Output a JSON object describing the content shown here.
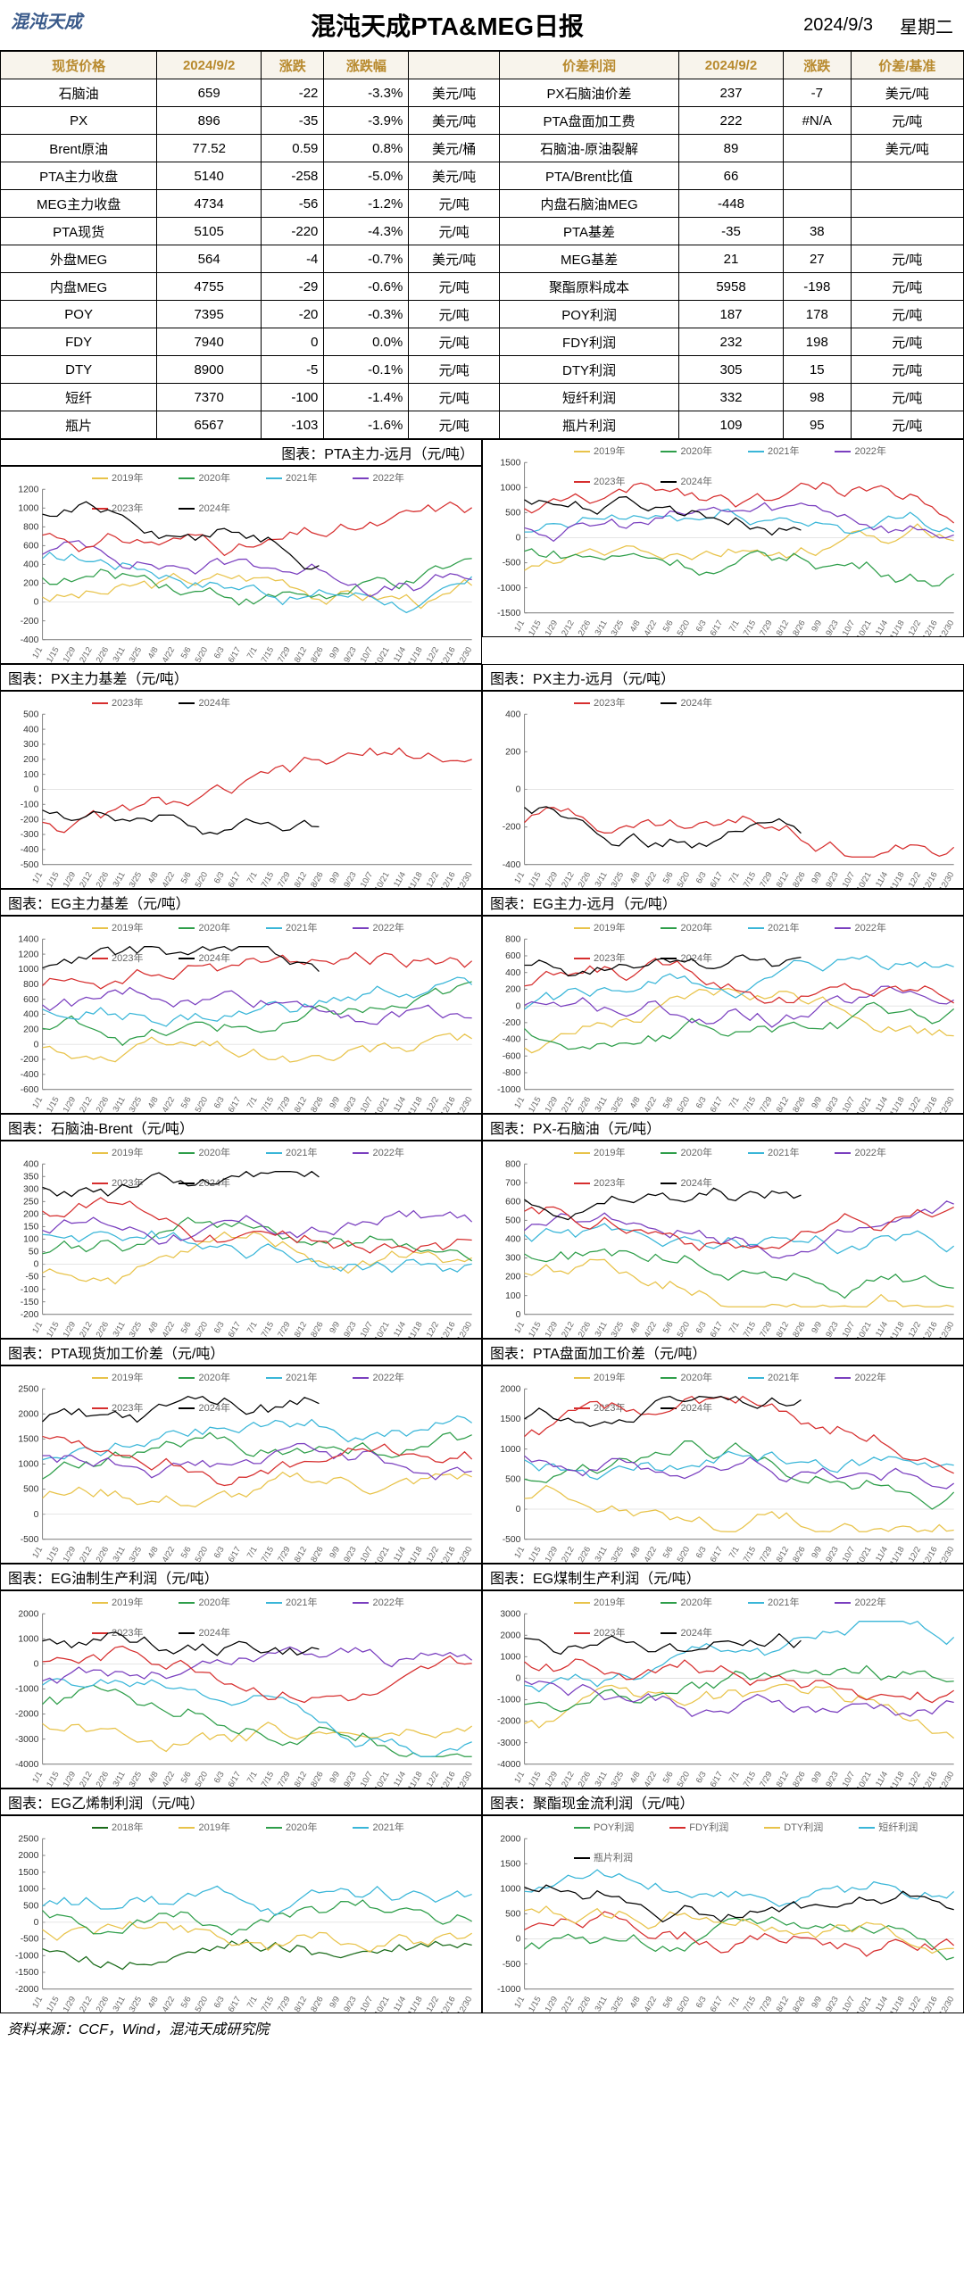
{
  "header": {
    "logo": "混沌天成",
    "title": "混沌天成PTA&MEG日报",
    "date": "2024/9/3",
    "dow": "星期二"
  },
  "table": {
    "headers_left": [
      "现货价格",
      "2024/9/2",
      "涨跌",
      "涨跌幅",
      ""
    ],
    "headers_right": [
      "价差利润",
      "2024/9/2",
      "涨跌",
      "价差/基准"
    ],
    "rows": [
      [
        "石脑油",
        "659",
        "-22",
        "-3.3%",
        "美元/吨",
        "PX石脑油价差",
        "237",
        "-7",
        "美元/吨"
      ],
      [
        "PX",
        "896",
        "-35",
        "-3.9%",
        "美元/吨",
        "PTA盘面加工费",
        "222",
        "#N/A",
        "元/吨"
      ],
      [
        "Brent原油",
        "77.52",
        "0.59",
        "0.8%",
        "美元/桶",
        "石脑油-原油裂解",
        "89",
        "",
        "美元/吨"
      ],
      [
        "PTA主力收盘",
        "5140",
        "-258",
        "-5.0%",
        "美元/吨",
        "PTA/Brent比值",
        "66",
        "",
        ""
      ],
      [
        "MEG主力收盘",
        "4734",
        "-56",
        "-1.2%",
        "元/吨",
        "内盘石脑油MEG",
        "-448",
        "",
        ""
      ],
      [
        "PTA现货",
        "5105",
        "-220",
        "-4.3%",
        "元/吨",
        "PTA基差",
        "-35",
        "38",
        ""
      ],
      [
        "外盘MEG",
        "564",
        "-4",
        "-0.7%",
        "美元/吨",
        "MEG基差",
        "21",
        "27",
        "元/吨"
      ],
      [
        "内盘MEG",
        "4755",
        "-29",
        "-0.6%",
        "元/吨",
        "聚酯原料成本",
        "5958",
        "-198",
        "元/吨"
      ],
      [
        "POY",
        "7395",
        "-20",
        "-0.3%",
        "元/吨",
        "POY利润",
        "187",
        "178",
        "元/吨"
      ],
      [
        "FDY",
        "7940",
        "0",
        "0.0%",
        "元/吨",
        "FDY利润",
        "232",
        "198",
        "元/吨"
      ],
      [
        "DTY",
        "8900",
        "-5",
        "-0.1%",
        "元/吨",
        "DTY利润",
        "305",
        "15",
        "元/吨"
      ],
      [
        "短纤",
        "7370",
        "-100",
        "-1.4%",
        "元/吨",
        "短纤利润",
        "332",
        "98",
        "元/吨"
      ],
      [
        "瓶片",
        "6567",
        "-103",
        "-1.6%",
        "元/吨",
        "瓶片利润",
        "109",
        "95",
        "元/吨"
      ]
    ]
  },
  "legend_years": [
    "2019年",
    "2020年",
    "2021年",
    "2022年",
    "2023年",
    "2024年"
  ],
  "legend_colors": {
    "2019年": "#e8c34a",
    "2020年": "#2e9e4a",
    "2021年": "#3ab6d8",
    "2022年": "#7a3fbf",
    "2023年": "#d62e2e",
    "2024年": "#000000",
    "2018年": "#1a6b1a",
    "POY利润": "#2e9e4a",
    "FDY利润": "#d62e2e",
    "DTY利润": "#e8c34a",
    "短纤利润": "#3ab6d8",
    "瓶片利润": "#000000"
  },
  "charts": [
    {
      "title": "图表：PTA主力-远月（元/吨）",
      "ymin": -400,
      "ymax": 1200,
      "ystep": 200,
      "legend": [
        "2019年",
        "2020年",
        "2021年",
        "2022年",
        "2023年",
        "2024年"
      ],
      "span": "right",
      "top_label": true
    },
    {
      "title": "",
      "ymin": -1500,
      "ymax": 1500,
      "ystep": 500,
      "legend": [
        "2019年",
        "2020年",
        "2021年",
        "2022年",
        "2023年",
        "2024年"
      ]
    },
    {
      "title": "图表：PX主力基差（元/吨）",
      "ymin": -500,
      "ymax": 500,
      "ystep": 100,
      "legend": [
        "2023年",
        "2024年"
      ]
    },
    {
      "title": "图表：PX主力-远月（元/吨）",
      "ymin": -400,
      "ymax": 400,
      "ystep": 200,
      "legend": [
        "2023年",
        "2024年"
      ]
    },
    {
      "title": "图表：EG主力基差（元/吨）",
      "ymin": -600,
      "ymax": 1400,
      "ystep": 200,
      "legend": [
        "2019年",
        "2020年",
        "2021年",
        "2022年",
        "2023年",
        "2024年"
      ]
    },
    {
      "title": "图表：EG主力-远月（元/吨）",
      "ymin": -1000,
      "ymax": 800,
      "ystep": 200,
      "legend": [
        "2019年",
        "2020年",
        "2021年",
        "2022年",
        "2023年",
        "2024年"
      ]
    },
    {
      "title": "图表：石脑油-Brent（元/吨）",
      "ymin": -200,
      "ymax": 400,
      "ystep": 50,
      "legend": [
        "2019年",
        "2020年",
        "2021年",
        "2022年",
        "2023年",
        "2024年"
      ]
    },
    {
      "title": "图表：PX-石脑油（元/吨）",
      "ymin": 0,
      "ymax": 800,
      "ystep": 100,
      "legend": [
        "2019年",
        "2020年",
        "2021年",
        "2022年",
        "2023年",
        "2024年"
      ]
    },
    {
      "title": "图表：PTA现货加工价差（元/吨）",
      "ymin": -500,
      "ymax": 2500,
      "ystep": 500,
      "legend": [
        "2019年",
        "2020年",
        "2021年",
        "2022年",
        "2023年",
        "2024年"
      ]
    },
    {
      "title": "图表：PTA盘面加工价差（元/吨）",
      "ymin": -500,
      "ymax": 2000,
      "ystep": 500,
      "legend": [
        "2019年",
        "2020年",
        "2021年",
        "2022年",
        "2023年",
        "2024年"
      ]
    },
    {
      "title": "图表：EG油制生产利润（元/吨）",
      "ymin": -4000,
      "ymax": 2000,
      "ystep": 1000,
      "legend": [
        "2019年",
        "2020年",
        "2021年",
        "2022年",
        "2023年",
        "2024年"
      ]
    },
    {
      "title": "图表：EG煤制生产利润（元/吨）",
      "ymin": -4000,
      "ymax": 3000,
      "ystep": 1000,
      "legend": [
        "2019年",
        "2020年",
        "2021年",
        "2022年",
        "2023年",
        "2024年"
      ]
    },
    {
      "title": "图表：EG乙烯制利润（元/吨）",
      "ymin": -2000,
      "ymax": 2500,
      "ystep": 500,
      "legend": [
        "2018年",
        "2019年",
        "2020年",
        "2021年"
      ]
    },
    {
      "title": "图表：聚酯现金流利润（元/吨）",
      "ymin": -1000,
      "ymax": 2000,
      "ystep": 500,
      "legend": [
        "POY利润",
        "FDY利润",
        "DTY利润",
        "短纤利润",
        "瓶片利润"
      ]
    }
  ],
  "xlabels": [
    "1/1",
    "1/15",
    "1/29",
    "2/12",
    "2/26",
    "3/11",
    "3/25",
    "4/8",
    "4/22",
    "5/6",
    "5/20",
    "6/3",
    "6/17",
    "7/1",
    "7/15",
    "7/29",
    "8/12",
    "8/26",
    "9/9",
    "9/23",
    "10/7",
    "10/21",
    "11/4",
    "11/18",
    "12/2",
    "12/16",
    "12/30"
  ],
  "source": "资料来源：CCF，Wind，混沌天成研究院"
}
